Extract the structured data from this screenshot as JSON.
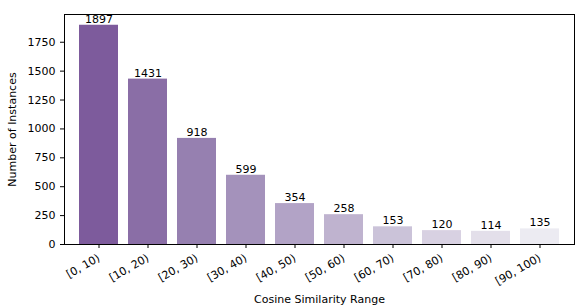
{
  "chart_data": {
    "type": "bar",
    "xlabel": "Cosine Similarity Range",
    "ylabel": "Number of Instances",
    "categories": [
      "[0, 10)",
      "[10, 20)",
      "[20, 30)",
      "[30, 40)",
      "[40, 50)",
      "[50, 60)",
      "[60, 70)",
      "[70, 80)",
      "[80, 90)",
      "[90, 100)"
    ],
    "values": [
      1897,
      1431,
      918,
      599,
      354,
      258,
      153,
      120,
      114,
      135
    ],
    "colors": [
      "#7d5b9c",
      "#8a6ea6",
      "#9680b0",
      "#a492bb",
      "#b2a3c6",
      "#bfb3cf",
      "#cbc3d9",
      "#d8d1e2",
      "#e3dfea",
      "#ecebf2"
    ],
    "ylim": [
      0,
      1990
    ],
    "yticks": [
      0,
      250,
      500,
      750,
      1000,
      1250,
      1500,
      1750
    ],
    "grid": false,
    "data_labels": true
  }
}
